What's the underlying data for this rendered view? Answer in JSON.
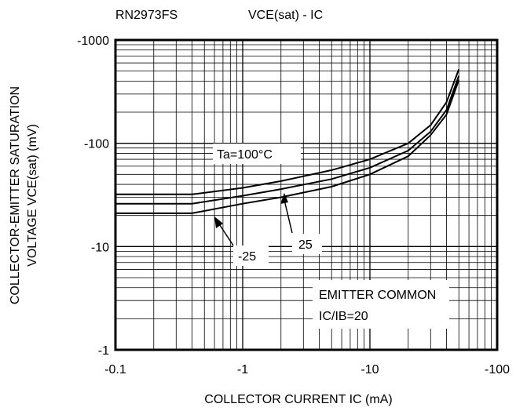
{
  "chart_data": {
    "type": "line",
    "part_number": "RN2973FS",
    "title": "VCE(sat) - IC",
    "xlabel": "COLLECTOR CURRENT IC (mA)",
    "ylabel_line1": "COLLECTOR-EMITTER SATURATION",
    "ylabel_line2": "VOLTAGE VCE(sat) (mV)",
    "x_scale": "log",
    "y_scale": "log",
    "xlim": [
      -0.1,
      -100
    ],
    "ylim": [
      -1,
      -1000
    ],
    "x_tick_labels": [
      "-0.1",
      "-1",
      "-10",
      "-100"
    ],
    "y_tick_labels": [
      "-1",
      "-10",
      "-100",
      "-1000"
    ],
    "grid": true,
    "series": [
      {
        "name": "Ta=100°C",
        "x": [
          -0.1,
          -0.4,
          -1,
          -2,
          -5,
          -10,
          -20,
          -30,
          -40,
          -50
        ],
        "y": [
          -32,
          -32,
          -37,
          -43,
          -55,
          -70,
          -100,
          -150,
          -250,
          -520
        ]
      },
      {
        "name": "25",
        "x": [
          -0.1,
          -0.4,
          -1,
          -2,
          -5,
          -10,
          -20,
          -30,
          -40,
          -50
        ],
        "y": [
          -26,
          -26,
          -31,
          -36,
          -45,
          -58,
          -85,
          -130,
          -210,
          -450
        ]
      },
      {
        "name": "-25",
        "x": [
          -0.1,
          -0.4,
          -1,
          -2,
          -5,
          -10,
          -20,
          -30,
          -40,
          -50
        ],
        "y": [
          -21,
          -21,
          -26,
          -30,
          -38,
          -50,
          -75,
          -120,
          -190,
          -410
        ]
      }
    ],
    "annotations": {
      "ta_label": "Ta=100°C",
      "label_25": "25",
      "label_m25": "-25",
      "common_line1": "EMITTER COMMON",
      "common_line2": "IC/IB=20"
    }
  }
}
